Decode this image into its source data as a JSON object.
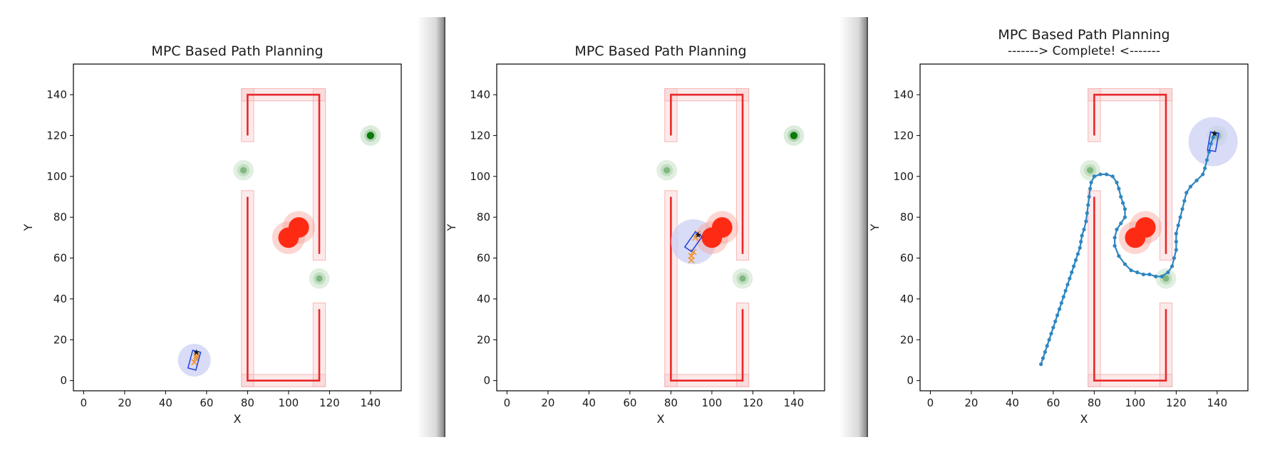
{
  "figure": {
    "panels": 3,
    "colors": {
      "wall": "#e8282b",
      "wall_shadow": "#f6b5b5",
      "waypoint_fill": "#2e8b2e",
      "goal_fill": "#0a7a0a",
      "obstacle": "#ff2a14",
      "obstacle_halo": "#f7a39c",
      "vehicle": "#1f3fe0",
      "vehicle_halo": "#c9cdf2",
      "prediction": "#f0922b",
      "trajectory": "#2f86c0"
    }
  },
  "chart_data": [
    {
      "type": "scatter",
      "title": "MPC Based Path Planning",
      "subtitle": "",
      "xlabel": "X",
      "ylabel": "Y",
      "xlim": [
        -5,
        155
      ],
      "ylim": [
        -5,
        155
      ],
      "xticks": [
        0,
        20,
        40,
        60,
        80,
        100,
        120,
        140
      ],
      "yticks": [
        0,
        20,
        40,
        60,
        80,
        100,
        120,
        140
      ],
      "grid": false,
      "walls": [
        [
          [
            80,
            120
          ],
          [
            80,
            140
          ],
          [
            115,
            140
          ],
          [
            115,
            62
          ]
        ],
        [
          [
            80,
            90
          ],
          [
            80,
            0
          ],
          [
            115,
            0
          ],
          [
            115,
            35
          ]
        ]
      ],
      "waypoints": [
        [
          78,
          103
        ],
        [
          115,
          50
        ]
      ],
      "goal": [
        140,
        120
      ],
      "obstacles": [
        [
          100,
          70
        ],
        [
          105,
          75
        ]
      ],
      "vehicle": {
        "x": 54,
        "y": 10,
        "heading_deg": 75,
        "halo_radius": 8
      },
      "predicted": [
        [
          54,
          9
        ],
        [
          55,
          11
        ],
        [
          55,
          12
        ]
      ],
      "trajectory": []
    },
    {
      "type": "scatter",
      "title": "MPC Based Path Planning",
      "subtitle": "",
      "xlabel": "X",
      "ylabel": "Y",
      "xlim": [
        -5,
        155
      ],
      "ylim": [
        -5,
        155
      ],
      "xticks": [
        0,
        20,
        40,
        60,
        80,
        100,
        120,
        140
      ],
      "yticks": [
        0,
        20,
        40,
        60,
        80,
        100,
        120,
        140
      ],
      "grid": false,
      "walls": [
        [
          [
            80,
            120
          ],
          [
            80,
            140
          ],
          [
            115,
            140
          ],
          [
            115,
            62
          ]
        ],
        [
          [
            80,
            90
          ],
          [
            80,
            0
          ],
          [
            115,
            0
          ],
          [
            115,
            35
          ]
        ]
      ],
      "waypoints": [
        [
          78,
          103
        ],
        [
          115,
          50
        ]
      ],
      "goal": [
        140,
        120
      ],
      "obstacles": [
        [
          100,
          70
        ],
        [
          105,
          75
        ]
      ],
      "vehicle": {
        "x": 91,
        "y": 68,
        "heading_deg": 55,
        "halo_radius": 11
      },
      "predicted": [
        [
          90,
          59
        ],
        [
          90,
          61
        ],
        [
          91,
          63
        ],
        [
          92,
          70
        ],
        [
          93,
          72
        ]
      ],
      "trajectory": []
    },
    {
      "type": "line",
      "title": "MPC Based Path Planning",
      "subtitle": "------->  Complete!  <-------",
      "xlabel": "X",
      "ylabel": "Y",
      "xlim": [
        -5,
        155
      ],
      "ylim": [
        -5,
        155
      ],
      "xticks": [
        0,
        20,
        40,
        60,
        80,
        100,
        120,
        140
      ],
      "yticks": [
        0,
        20,
        40,
        60,
        80,
        100,
        120,
        140
      ],
      "grid": false,
      "walls": [
        [
          [
            80,
            120
          ],
          [
            80,
            140
          ],
          [
            115,
            140
          ],
          [
            115,
            62
          ]
        ],
        [
          [
            80,
            90
          ],
          [
            80,
            0
          ],
          [
            115,
            0
          ],
          [
            115,
            35
          ]
        ]
      ],
      "waypoints": [
        [
          78,
          103
        ],
        [
          115,
          50
        ]
      ],
      "goal": [
        140,
        120
      ],
      "obstacles": [
        [
          100,
          70
        ],
        [
          105,
          75
        ]
      ],
      "vehicle": {
        "x": 138,
        "y": 117,
        "heading_deg": 80,
        "halo_radius": 12
      },
      "predicted": [],
      "trajectory": [
        [
          54,
          8
        ],
        [
          55,
          11
        ],
        [
          56,
          14
        ],
        [
          57,
          17
        ],
        [
          58,
          20
        ],
        [
          59,
          23
        ],
        [
          60,
          26
        ],
        [
          61,
          29
        ],
        [
          62,
          32
        ],
        [
          63,
          35
        ],
        [
          64,
          38
        ],
        [
          65,
          41
        ],
        [
          66,
          44
        ],
        [
          67,
          47
        ],
        [
          68,
          50
        ],
        [
          69,
          53
        ],
        [
          70,
          56
        ],
        [
          71,
          59
        ],
        [
          72,
          62
        ],
        [
          73,
          65
        ],
        [
          73.5,
          68
        ],
        [
          74,
          71
        ],
        [
          75,
          74
        ],
        [
          76,
          78
        ],
        [
          76.5,
          82
        ],
        [
          77,
          86
        ],
        [
          77.5,
          90
        ],
        [
          78,
          94
        ],
        [
          78.5,
          97
        ],
        [
          80,
          100
        ],
        [
          83,
          101
        ],
        [
          86,
          101
        ],
        [
          89,
          100
        ],
        [
          91,
          97
        ],
        [
          92,
          94
        ],
        [
          93,
          90
        ],
        [
          94,
          87
        ],
        [
          95,
          84
        ],
        [
          95,
          80
        ],
        [
          93,
          77
        ],
        [
          91,
          74
        ],
        [
          90,
          70
        ],
        [
          90,
          66
        ],
        [
          92,
          61
        ],
        [
          95,
          57
        ],
        [
          98,
          54
        ],
        [
          101,
          53
        ],
        [
          104,
          52
        ],
        [
          107,
          52
        ],
        [
          110,
          51
        ],
        [
          113,
          51
        ],
        [
          116,
          53
        ],
        [
          118,
          56
        ],
        [
          119,
          60
        ],
        [
          120,
          64
        ],
        [
          120,
          68
        ],
        [
          120,
          72
        ],
        [
          121,
          76
        ],
        [
          122,
          80
        ],
        [
          123,
          84
        ],
        [
          124,
          88
        ],
        [
          125,
          92
        ],
        [
          127,
          95
        ],
        [
          130,
          98
        ],
        [
          133,
          101
        ],
        [
          134,
          104
        ],
        [
          135,
          108
        ],
        [
          136,
          112
        ],
        [
          137,
          116
        ],
        [
          138,
          119
        ],
        [
          139,
          121
        ]
      ]
    }
  ]
}
